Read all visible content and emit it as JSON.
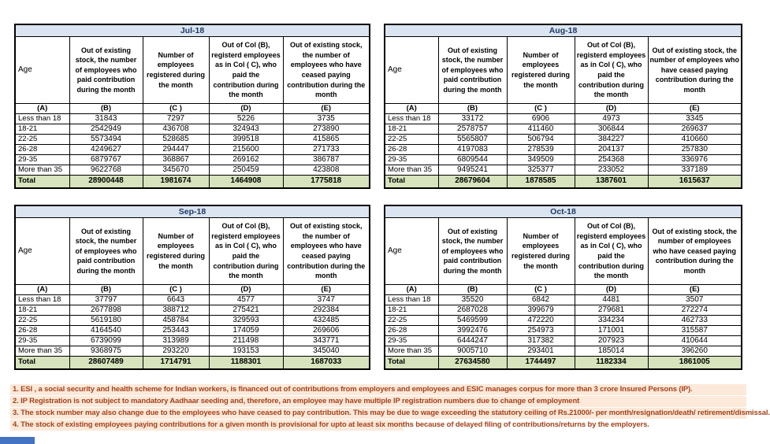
{
  "tables": [
    {
      "month": "Jul-18",
      "col_headers": [
        "Age",
        "Out of existing stock, the number of employees who paid contribution during the month",
        "Number of employees registered during the month",
        "Out of Col (B), registerd employees as in Col ( C), who paid the contribution during the month",
        "Out of existing stock, the number of  employees who have ceased paying contribution during the month"
      ],
      "col_letters": [
        "(A)",
        "(B)",
        "(C )",
        "(D)",
        "(E)"
      ],
      "rows": [
        [
          "Less than 18",
          "31843",
          "7297",
          "5226",
          "3735"
        ],
        [
          "18-21",
          "2542949",
          "436708",
          "324943",
          "273890"
        ],
        [
          "22-25",
          "5573494",
          "528685",
          "399518",
          "415865"
        ],
        [
          "26-28",
          "4249627",
          "294447",
          "215600",
          "271733"
        ],
        [
          "29-35",
          "6879767",
          "368867",
          "269162",
          "386787"
        ],
        [
          "More than 35",
          "9622768",
          "345670",
          "250459",
          "423808"
        ]
      ],
      "total": [
        "Total",
        "28900448",
        "1981674",
        "1464908",
        "1775818"
      ]
    },
    {
      "month": "Aug-18",
      "col_headers": [
        "Age",
        "Out of existing stock, the number of employees who paid contribution during the month",
        "Number of employees registered during the month",
        "Out of Col (B), registerd employees as in Col ( C), who paid the contribution during the month",
        "Out of existing stock, the number of  employees who have ceased paying contribution during the month"
      ],
      "col_letters": [
        "(A)",
        "(B)",
        "(C )",
        "(D)",
        "(E)"
      ],
      "rows": [
        [
          "Less than 18",
          "33172",
          "6906",
          "4973",
          "3345"
        ],
        [
          "18-21",
          "2578757",
          "411460",
          "306844",
          "269637"
        ],
        [
          "22-25",
          "5565807",
          "506794",
          "384227",
          "410660"
        ],
        [
          "26-28",
          "4197083",
          "278539",
          "204137",
          "257830"
        ],
        [
          "29-35",
          "6809544",
          "349509",
          "254368",
          "336976"
        ],
        [
          "More than 35",
          "9495241",
          "325377",
          "233052",
          "337189"
        ]
      ],
      "total": [
        "Total",
        "28679604",
        "1878585",
        "1387601",
        "1615637"
      ]
    },
    {
      "month": "Sep-18",
      "col_headers": [
        "Age",
        "Out of existing stock, the number of employees who paid contribution during the month",
        "Number of employees registered during the month",
        "Out of Col (B), registerd employees as in Col ( C), who paid the contribution during the month",
        "Out of existing stock, the number of  employees who have ceased paying contribution during the month"
      ],
      "col_letters": [
        "(A)",
        "(B)",
        "(C )",
        "(D)",
        "(E)"
      ],
      "rows": [
        [
          "Less than 18",
          "37797",
          "6643",
          "4577",
          "3747"
        ],
        [
          "18-21",
          "2677898",
          "388712",
          "275421",
          "292384"
        ],
        [
          "22-25",
          "5619180",
          "458784",
          "329593",
          "432485"
        ],
        [
          "26-28",
          "4164540",
          "253443",
          "174059",
          "269606"
        ],
        [
          "29-35",
          "6739099",
          "313989",
          "211498",
          "343771"
        ],
        [
          "More than 35",
          "9368975",
          "293220",
          "193153",
          "345040"
        ]
      ],
      "total": [
        "Total",
        "28607489",
        "1714791",
        "1188301",
        "1687033"
      ]
    },
    {
      "month": "Oct-18",
      "col_headers": [
        "Age",
        "Out of existing stock, the number of employees who paid contribution during the month",
        "Number of employees registered during the month",
        "Out of Col (B), registerd employees as in Col ( C), who paid the contribution during the month",
        "Out of existing stock, the number of  employees who have ceased paying contribution during the month"
      ],
      "col_letters": [
        "(A)",
        "(B)",
        "(C )",
        "(D)",
        "(E)"
      ],
      "rows": [
        [
          "Less than 18",
          "35520",
          "6842",
          "4481",
          "3507"
        ],
        [
          "18-21",
          "2687028",
          "399679",
          "279681",
          "272274"
        ],
        [
          "22-25",
          "5469599",
          "472220",
          "334234",
          "462733"
        ],
        [
          "26-28",
          "3992476",
          "254973",
          "171001",
          "315587"
        ],
        [
          "29-35",
          "6444247",
          "317382",
          "207923",
          "410644"
        ],
        [
          "More than 35",
          "9005710",
          "293401",
          "185014",
          "396260"
        ]
      ],
      "total": [
        "Total",
        "27634580",
        "1744497",
        "1182334",
        "1861005"
      ]
    }
  ],
  "footnotes": [
    "1. ESI , a social security and health scheme for Indian workers, is financed out of contributions from employers and employees and ESIC manages corpus for more than 3 crore Insured Persons (IP).",
    "2. IP Registration is not subject to mandatory Aadhaar seeding and, therefore, an employee may have multiple IP registration numbers due to change of employment",
    "3. The stock number may also change due to the employees who have ceased to pay contribution. This may  be due to wage exceeding the statutory ceiling of  Rs.21000/- per month/resignation/death/ retirement/dismissal.",
    "4. The stock of existing employees paying contributions for a given month is provisional for upto at least six months because of delayed filing of contributions/returns by the employers."
  ],
  "colors": {
    "month_header_bg": "#DBE5F1",
    "month_header_text": "#1F3864",
    "total_row_bg": "#D6E3BC",
    "footnote_bg": "#FDE9D9",
    "footnote_text": "#A3421C",
    "table_border": "#000000",
    "sheet_tab_blue": "#4472C4"
  }
}
